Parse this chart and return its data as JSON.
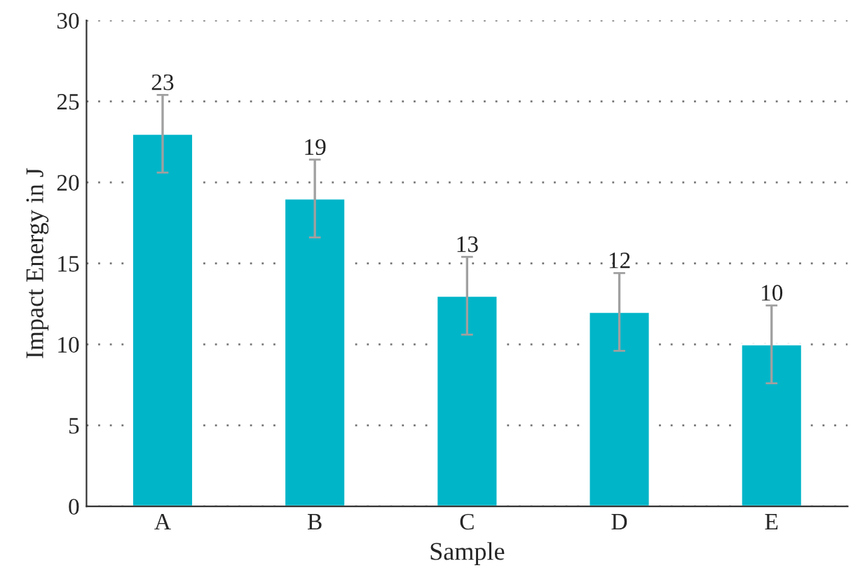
{
  "chart_data": {
    "type": "bar",
    "xlabel": "Sample",
    "ylabel": "Impact Energy in J",
    "categories": [
      "A",
      "B",
      "C",
      "D",
      "E"
    ],
    "series": [
      {
        "color": "#00b5c8",
        "values": [
          23,
          19,
          13,
          12,
          10
        ],
        "errors": [
          2.4,
          2.4,
          2.4,
          2.4,
          2.4
        ]
      }
    ],
    "ylim": [
      0,
      30
    ],
    "yticks": [
      0,
      5,
      10,
      15,
      20,
      25,
      30
    ],
    "grid": "y",
    "data_labels": true
  }
}
